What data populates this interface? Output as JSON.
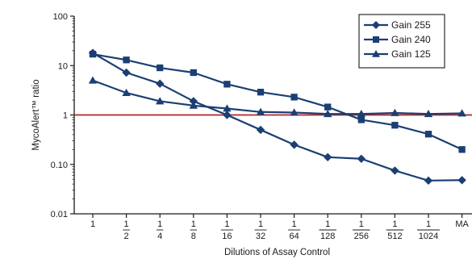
{
  "chart_data": {
    "type": "line",
    "ylabel": "MycoAlert™ ratio",
    "xlabel": "Dilutions of Assay Control",
    "y_scale": "log",
    "ylim": [
      0.01,
      100
    ],
    "y_ticks": [
      "100",
      "10",
      "1",
      "0.10",
      "0.01"
    ],
    "x_categories": [
      {
        "num": "1",
        "den": ""
      },
      {
        "num": "1",
        "den": "2"
      },
      {
        "num": "1",
        "den": "4"
      },
      {
        "num": "1",
        "den": "8"
      },
      {
        "num": "1",
        "den": "16"
      },
      {
        "num": "1",
        "den": "32"
      },
      {
        "num": "1",
        "den": "64"
      },
      {
        "num": "1",
        "den": "128"
      },
      {
        "num": "1",
        "den": "256"
      },
      {
        "num": "1",
        "den": "512"
      },
      {
        "num": "1",
        "den": "1024"
      },
      {
        "num": "MA",
        "den": ""
      }
    ],
    "reference_line": {
      "y": 1,
      "color": "#b0282a"
    },
    "legend_position": "top-right",
    "series_color": "#1b3f73",
    "series": [
      {
        "name": "Gain 255",
        "marker": "diamond",
        "values": [
          18,
          7.2,
          4.3,
          1.9,
          1.0,
          0.5,
          0.25,
          0.14,
          0.13,
          0.075,
          0.047,
          0.048
        ]
      },
      {
        "name": "Gain 240",
        "marker": "square",
        "values": [
          17,
          13,
          9,
          7.2,
          4.2,
          2.9,
          2.3,
          1.45,
          0.8,
          0.62,
          0.41,
          0.2
        ]
      },
      {
        "name": "Gain 125",
        "marker": "triangle",
        "values": [
          5,
          2.8,
          1.9,
          1.55,
          1.35,
          1.15,
          1.12,
          1.05,
          1.05,
          1.1,
          1.05,
          1.08
        ]
      }
    ]
  }
}
